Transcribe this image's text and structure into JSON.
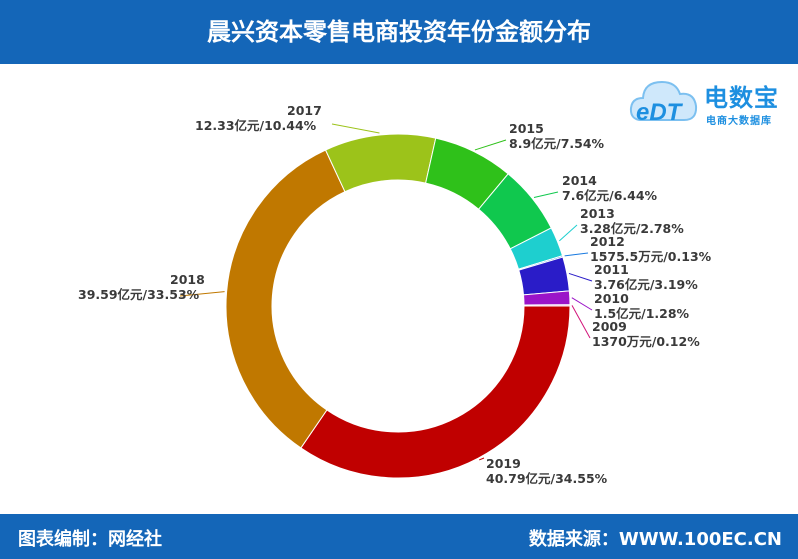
{
  "header": {
    "title": "晨兴资本零售电商投资年份金额分布"
  },
  "footer": {
    "left": "图表编制：网经社",
    "right": "数据来源：WWW.100EC.CN"
  },
  "logo": {
    "mark": "eDT",
    "name": "电数宝",
    "subtitle": "电商大数据库"
  },
  "colors": {
    "header_bg": "#1466b8"
  },
  "chart_data": {
    "type": "pie",
    "style": "donut",
    "slices": [
      {
        "year": "2019",
        "label": "40.79亿元/34.55%",
        "value": 34.55,
        "color": "#c00000"
      },
      {
        "year": "2018",
        "label": "39.59亿元/33.53%",
        "value": 33.53,
        "color": "#c07800"
      },
      {
        "year": "2017",
        "label": "12.33亿元/10.44%",
        "value": 10.44,
        "color": "#9cc31a"
      },
      {
        "year": "2015",
        "label": "8.9亿元/7.54%",
        "value": 7.54,
        "color": "#2fc11a"
      },
      {
        "year": "2014",
        "label": "7.6亿元/6.44%",
        "value": 6.44,
        "color": "#10c84e"
      },
      {
        "year": "2013",
        "label": "3.28亿元/2.78%",
        "value": 2.78,
        "color": "#1ecfcf"
      },
      {
        "year": "2012",
        "label": "1575.5万元/0.13%",
        "value": 0.13,
        "color": "#1a7ae0"
      },
      {
        "year": "2011",
        "label": "3.76亿元/3.19%",
        "value": 3.19,
        "color": "#2a1cc8"
      },
      {
        "year": "2010",
        "label": "1.5亿元/1.28%",
        "value": 1.28,
        "color": "#9b14c8"
      },
      {
        "year": "2009",
        "label": "1370万元/0.12%",
        "value": 0.12,
        "color": "#d2147a"
      }
    ]
  }
}
